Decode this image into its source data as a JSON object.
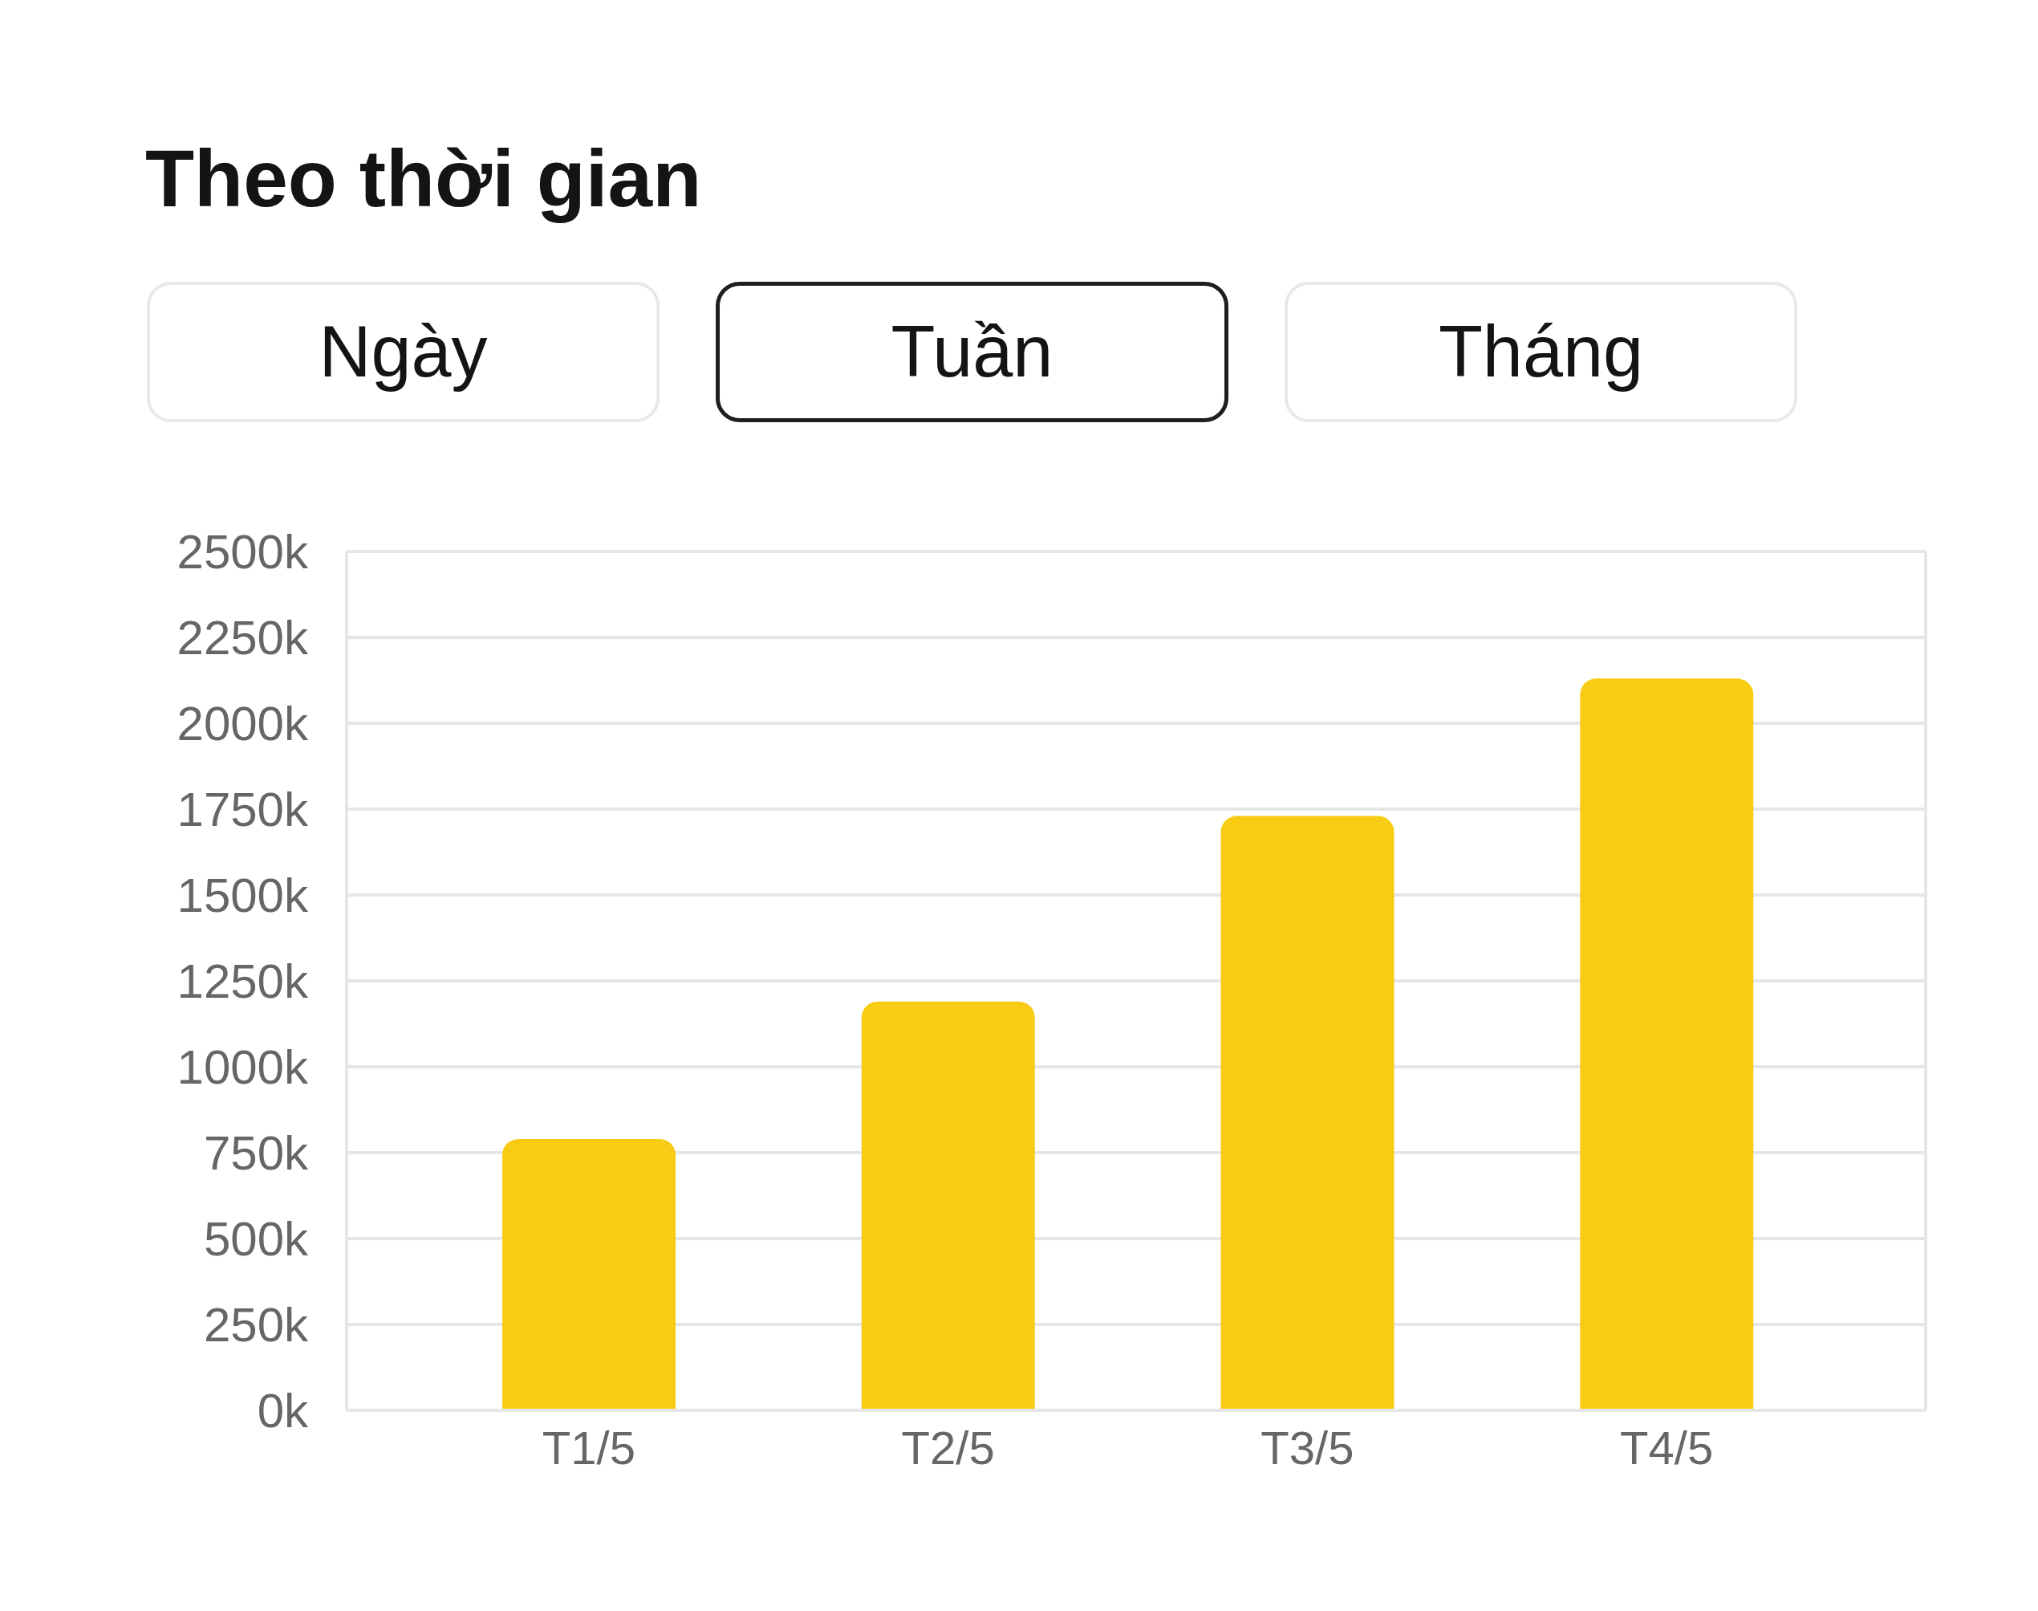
{
  "chart_data": {
    "type": "bar",
    "title": "Theo thời gian",
    "annotations": [
      "Ngày",
      "Tuần",
      "Tháng"
    ],
    "categories": [
      "T1/5",
      "T2/5",
      "T3/5",
      "T4/5"
    ],
    "values": [
      790,
      1190,
      1730,
      2130
    ],
    "color": "#f8cc15",
    "ylim": [
      0,
      2500
    ],
    "yticks": [
      {
        "value": 0,
        "label": "0k"
      },
      {
        "value": 250,
        "label": "250k"
      },
      {
        "value": 500,
        "label": "500k"
      },
      {
        "value": 750,
        "label": "750k"
      },
      {
        "value": 1000,
        "label": "1000k"
      },
      {
        "value": 1250,
        "label": "1250k"
      },
      {
        "value": 1500,
        "label": "1500k"
      },
      {
        "value": 1750,
        "label": "1750k"
      },
      {
        "value": 2000,
        "label": "2000k"
      },
      {
        "value": 2250,
        "label": "2250k"
      },
      {
        "value": 2500,
        "label": "2500k"
      }
    ],
    "grid": "y"
  }
}
